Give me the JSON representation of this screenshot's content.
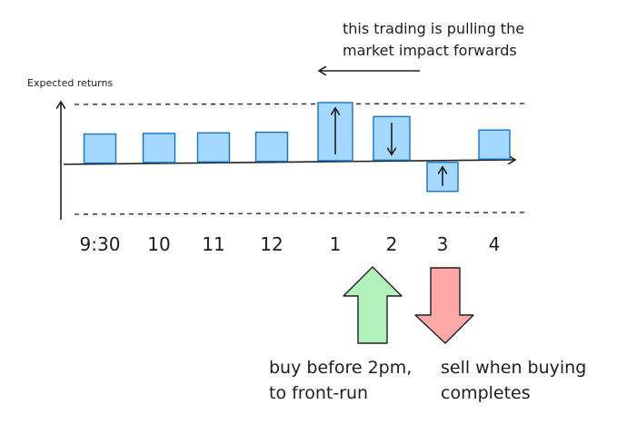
{
  "chart_data": {
    "type": "bar",
    "ylabel": "Expected returns",
    "categories": [
      "9:30",
      "10",
      "11",
      "12",
      "1",
      "2",
      "3",
      "4"
    ],
    "values": [
      1,
      1,
      1,
      1,
      2,
      1.5,
      -1,
      1
    ],
    "arrows": [
      "",
      "",
      "",
      "",
      "up",
      "down",
      "up",
      ""
    ],
    "grid": false
  },
  "annotation": {
    "line1": "this trading is pulling the",
    "line2": "market impact forwards"
  },
  "buy": {
    "line1": "buy before 2pm,",
    "line2": "to front-run",
    "color": "#b2f2bb"
  },
  "sell": {
    "line1": "sell when buying",
    "line2": "completes",
    "color": "#ffa8a8"
  },
  "colors": {
    "bar_fill": "#a5d8ff",
    "bar_stroke": "#1971c2",
    "ink": "#1e1e1e"
  }
}
